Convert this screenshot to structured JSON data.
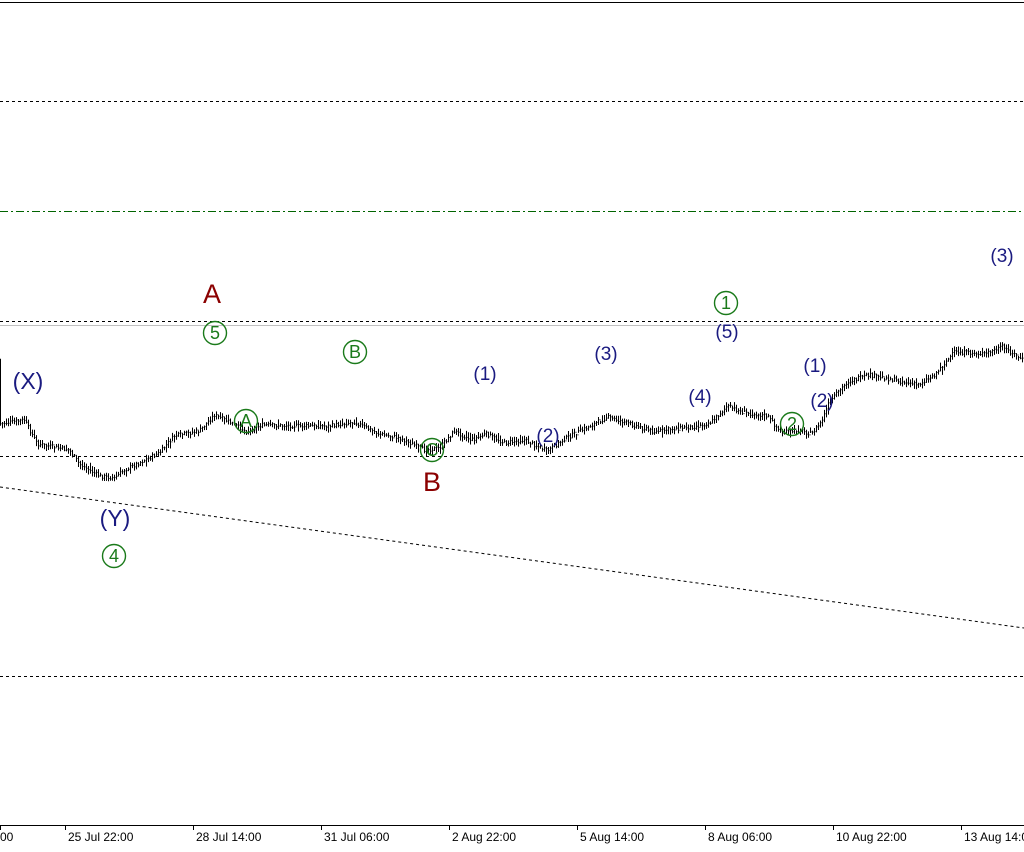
{
  "chart_data": {
    "type": "ohlc",
    "title": "",
    "xlabel": "",
    "ylabel": "",
    "x_tick_labels": [
      "25 Jul 22:00",
      "28 Jul 14:00",
      "31 Jul 06:00",
      "2 Aug 22:00",
      "5 Aug 14:00",
      "8 Aug 06:00",
      "10 Aug 22:00",
      "13 Aug 14:00"
    ],
    "x_tick_first_partial": "00",
    "price_path": [
      {
        "t": 0,
        "p": 24
      },
      {
        "t": 25,
        "p": 20
      },
      {
        "t": 38,
        "p": 44
      },
      {
        "t": 70,
        "p": 50
      },
      {
        "t": 80,
        "p": 64
      },
      {
        "t": 100,
        "p": 76
      },
      {
        "t": 115,
        "p": 78
      },
      {
        "t": 125,
        "p": 70
      },
      {
        "t": 160,
        "p": 53
      },
      {
        "t": 175,
        "p": 36
      },
      {
        "t": 200,
        "p": 31
      },
      {
        "t": 215,
        "p": 15
      },
      {
        "t": 230,
        "p": 22
      },
      {
        "t": 248,
        "p": 32
      },
      {
        "t": 262,
        "p": 25
      },
      {
        "t": 300,
        "p": 26
      },
      {
        "t": 330,
        "p": 26
      },
      {
        "t": 355,
        "p": 22
      },
      {
        "t": 380,
        "p": 34
      },
      {
        "t": 400,
        "p": 38
      },
      {
        "t": 425,
        "p": 50
      },
      {
        "t": 440,
        "p": 48
      },
      {
        "t": 455,
        "p": 31
      },
      {
        "t": 472,
        "p": 40
      },
      {
        "t": 487,
        "p": 34
      },
      {
        "t": 505,
        "p": 43
      },
      {
        "t": 525,
        "p": 40
      },
      {
        "t": 548,
        "p": 51
      },
      {
        "t": 565,
        "p": 39
      },
      {
        "t": 585,
        "p": 29
      },
      {
        "t": 608,
        "p": 17
      },
      {
        "t": 625,
        "p": 22
      },
      {
        "t": 655,
        "p": 32
      },
      {
        "t": 672,
        "p": 29
      },
      {
        "t": 700,
        "p": 26
      },
      {
        "t": 712,
        "p": 22
      },
      {
        "t": 728,
        "p": 6
      },
      {
        "t": 742,
        "p": 12
      },
      {
        "t": 768,
        "p": 16
      },
      {
        "t": 782,
        "p": 33
      },
      {
        "t": 800,
        "p": 30
      },
      {
        "t": 812,
        "p": 34
      },
      {
        "t": 822,
        "p": 22
      },
      {
        "t": 830,
        "p": 2
      },
      {
        "t": 848,
        "p": -18
      },
      {
        "t": 870,
        "p": -25
      },
      {
        "t": 895,
        "p": -20
      },
      {
        "t": 918,
        "p": -15
      },
      {
        "t": 935,
        "p": -25
      },
      {
        "t": 955,
        "p": -48
      },
      {
        "t": 985,
        "p": -46
      },
      {
        "t": 1003,
        "p": -53
      },
      {
        "t": 1024,
        "p": -40
      }
    ],
    "horizontal_levels": [
      {
        "style": "dotted",
        "color": "#000000"
      },
      {
        "style": "dash-dot",
        "color": "#006400"
      },
      {
        "style": "dotted",
        "color": "#000000"
      },
      {
        "style": "solid",
        "color": "#c0c0c0"
      },
      {
        "style": "dotted",
        "color": "#000000"
      },
      {
        "style": "dotted",
        "color": "#000000"
      }
    ],
    "wave_labels": [
      {
        "text": "(X)",
        "color": "#1a1a80",
        "circled": false
      },
      {
        "text": "(Y)",
        "color": "#1a1a80",
        "circled": false
      },
      {
        "text": "4",
        "color": "#1a7a1a",
        "circled": true
      },
      {
        "text": "A",
        "color": "#8b0000",
        "circled": false
      },
      {
        "text": "5",
        "color": "#1a7a1a",
        "circled": true
      },
      {
        "text": "A",
        "color": "#1a7a1a",
        "circled": true
      },
      {
        "text": "B",
        "color": "#1a7a1a",
        "circled": true
      },
      {
        "text": "C",
        "color": "#1a7a1a",
        "circled": true
      },
      {
        "text": "B",
        "color": "#8b0000",
        "circled": false
      },
      {
        "text": "(1)",
        "color": "#1a1a80",
        "circled": false
      },
      {
        "text": "(2)",
        "color": "#1a1a80",
        "circled": false
      },
      {
        "text": "(3)",
        "color": "#1a1a80",
        "circled": false
      },
      {
        "text": "(4)",
        "color": "#1a1a80",
        "circled": false
      },
      {
        "text": "(5)",
        "color": "#1a1a80",
        "circled": false
      },
      {
        "text": "1",
        "color": "#1a7a1a",
        "circled": true
      },
      {
        "text": "2",
        "color": "#1a7a1a",
        "circled": true
      },
      {
        "text": "(1)",
        "color": "#1a1a80",
        "circled": false
      },
      {
        "text": "(2)",
        "color": "#1a1a80",
        "circled": false
      },
      {
        "text": "(3)",
        "color": "#1a1a80",
        "circled": false
      }
    ]
  }
}
